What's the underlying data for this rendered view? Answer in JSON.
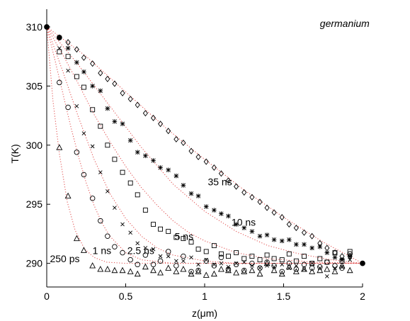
{
  "chart_data": {
    "type": "scatter",
    "title": "",
    "xlabel": "z(μm)",
    "ylabel": "T(K)",
    "xlim": [
      0,
      2
    ],
    "ylim": [
      288,
      311.5
    ],
    "x_ticks": [
      0,
      0.5,
      1,
      1.5,
      2
    ],
    "x_tick_labels": [
      "0",
      "0.5",
      "1",
      "1.5",
      "2"
    ],
    "y_ticks": [
      290,
      295,
      300,
      305,
      310
    ],
    "y_tick_labels": [
      "290",
      "295",
      "300",
      "305",
      "310"
    ],
    "grid": false,
    "legend": "none",
    "annotations": [
      {
        "text": "germanium",
        "x": 1.73,
        "y": 310.0,
        "italic": true
      },
      {
        "text": "35 ns",
        "x": 1.02,
        "y": 296.6
      },
      {
        "text": "10 ns",
        "x": 1.17,
        "y": 293.2
      },
      {
        "text": "5 ns",
        "x": 0.81,
        "y": 292.0
      },
      {
        "text": "2.5 ns",
        "x": 0.51,
        "y": 290.8
      },
      {
        "text": "1 ns",
        "x": 0.29,
        "y": 290.8
      },
      {
        "text": "250 ps",
        "x": 0.02,
        "y": 290.1
      }
    ],
    "endpoints": [
      {
        "x": 0.0,
        "y": 310.0
      },
      {
        "x": 0.08,
        "y": 309.1
      },
      {
        "x": 2.0,
        "y": 290.0
      }
    ],
    "series": [
      {
        "label": "250 ps",
        "marker": "triangle",
        "x": [
          0.08,
          0.135,
          0.19,
          0.235,
          0.29,
          0.34,
          0.385,
          0.43,
          0.48,
          0.53,
          0.575,
          0.625,
          0.675,
          0.72,
          0.77,
          0.82,
          0.865,
          0.915,
          0.96,
          1.01,
          1.06,
          1.105,
          1.15,
          1.2,
          1.25,
          1.3,
          1.35,
          1.395,
          1.44,
          1.49,
          1.535,
          1.58,
          1.63,
          1.68,
          1.73,
          1.775,
          1.825,
          1.87,
          1.92
        ],
        "y": [
          299.8,
          295.7,
          292.1,
          291.1,
          289.8,
          289.5,
          289.5,
          289.4,
          289.4,
          289.3,
          289.1,
          289.7,
          289.4,
          289.2,
          289.6,
          289.3,
          289.5,
          289.1,
          289.3,
          289.0,
          289.1,
          289.5,
          289.4,
          289.2,
          289.3,
          289.4,
          289.1,
          290.0,
          289.4,
          289.1,
          289.7,
          289.3,
          289.5,
          289.3,
          289.4,
          289.5,
          289.3,
          289.8,
          289.4
        ]
      },
      {
        "label": "1 ns",
        "marker": "circle",
        "x": [
          0.08,
          0.135,
          0.19,
          0.235,
          0.29,
          0.34,
          0.385,
          0.43,
          0.48,
          0.53,
          0.575,
          0.625,
          0.675,
          0.72,
          0.77,
          0.82,
          0.865,
          0.915,
          0.96,
          1.01,
          1.06,
          1.105,
          1.15,
          1.2,
          1.25,
          1.3,
          1.35,
          1.395,
          1.44,
          1.49,
          1.535,
          1.58,
          1.63,
          1.68,
          1.73,
          1.775,
          1.825,
          1.87,
          1.92
        ],
        "y": [
          305.3,
          303.2,
          299.4,
          297.5,
          295.5,
          293.6,
          292.3,
          291.4,
          290.9,
          290.3,
          289.9,
          290.7,
          289.9,
          290.2,
          291.0,
          289.8,
          290.6,
          289.3,
          289.4,
          290.2,
          289.8,
          290.5,
          289.5,
          289.9,
          289.4,
          290.0,
          289.6,
          290.1,
          289.8,
          289.3,
          290.0,
          289.5,
          289.9,
          289.6,
          289.7,
          290.1,
          289.8,
          289.6,
          290.8
        ]
      },
      {
        "label": "2.5 ns",
        "marker": "x",
        "x": [
          0.08,
          0.135,
          0.19,
          0.235,
          0.29,
          0.34,
          0.385,
          0.43,
          0.48,
          0.53,
          0.575,
          0.625,
          0.675,
          0.72,
          0.77,
          0.82,
          0.865,
          0.915,
          0.96,
          1.01,
          1.06,
          1.105,
          1.15,
          1.2,
          1.25,
          1.3,
          1.35,
          1.395,
          1.44,
          1.49,
          1.535,
          1.58,
          1.63,
          1.68,
          1.73,
          1.775,
          1.825,
          1.87,
          1.92
        ],
        "y": [
          308.2,
          306.3,
          303.3,
          301.0,
          299.9,
          297.7,
          296.1,
          294.7,
          293.3,
          292.6,
          291.7,
          291.3,
          291.2,
          290.6,
          290.6,
          290.2,
          290.2,
          290.5,
          289.9,
          290.3,
          289.9,
          290.0,
          289.7,
          290.0,
          290.1,
          289.8,
          289.6,
          289.8,
          289.7,
          289.9,
          289.6,
          289.8,
          289.5,
          290.0,
          289.6,
          288.9,
          289.6,
          289.7,
          290.3
        ]
      },
      {
        "label": "5 ns",
        "marker": "square",
        "x": [
          0.08,
          0.135,
          0.19,
          0.235,
          0.29,
          0.34,
          0.385,
          0.43,
          0.48,
          0.53,
          0.575,
          0.625,
          0.675,
          0.72,
          0.77,
          0.82,
          0.865,
          0.915,
          0.96,
          1.01,
          1.06,
          1.105,
          1.15,
          1.2,
          1.25,
          1.3,
          1.35,
          1.395,
          1.44,
          1.49,
          1.535,
          1.58,
          1.63,
          1.68,
          1.73,
          1.775,
          1.825,
          1.87,
          1.92
        ],
        "y": [
          307.9,
          307.5,
          305.8,
          304.9,
          303.0,
          301.6,
          300.0,
          298.8,
          297.7,
          296.8,
          295.8,
          294.5,
          293.3,
          292.9,
          292.7,
          292.2,
          292.1,
          291.8,
          291.2,
          291.0,
          291.5,
          290.8,
          290.6,
          290.9,
          290.4,
          290.6,
          290.3,
          290.7,
          290.4,
          290.3,
          290.8,
          290.2,
          290.6,
          290.0,
          290.4,
          290.1,
          290.9,
          290.2,
          291.0
        ]
      },
      {
        "label": "10 ns",
        "marker": "star",
        "x": [
          0.08,
          0.135,
          0.19,
          0.235,
          0.29,
          0.34,
          0.385,
          0.43,
          0.48,
          0.53,
          0.575,
          0.625,
          0.675,
          0.72,
          0.77,
          0.82,
          0.865,
          0.915,
          0.96,
          1.01,
          1.06,
          1.105,
          1.15,
          1.2,
          1.25,
          1.3,
          1.35,
          1.395,
          1.44,
          1.49,
          1.535,
          1.58,
          1.63,
          1.68,
          1.73,
          1.775,
          1.825,
          1.87,
          1.92
        ],
        "y": [
          309.1,
          308.2,
          307.0,
          306.2,
          305.0,
          304.6,
          303.1,
          302.0,
          301.8,
          300.4,
          299.4,
          299.1,
          298.7,
          298.1,
          297.9,
          297.4,
          296.6,
          295.9,
          295.7,
          294.8,
          294.5,
          294.2,
          294.0,
          293.3,
          293.0,
          292.7,
          292.3,
          292.4,
          292.0,
          291.9,
          292.0,
          291.6,
          291.6,
          291.3,
          291.4,
          290.9,
          290.5,
          290.3,
          290.6
        ]
      },
      {
        "label": "35 ns",
        "marker": "diamond",
        "x": [
          0.08,
          0.135,
          0.19,
          0.235,
          0.29,
          0.34,
          0.385,
          0.43,
          0.48,
          0.53,
          0.575,
          0.625,
          0.675,
          0.72,
          0.77,
          0.82,
          0.865,
          0.915,
          0.96,
          1.01,
          1.06,
          1.105,
          1.15,
          1.2,
          1.25,
          1.3,
          1.35,
          1.395,
          1.44,
          1.49,
          1.535,
          1.58,
          1.63,
          1.68,
          1.73,
          1.775,
          1.825,
          1.87,
          1.92
        ],
        "y": [
          309.1,
          308.7,
          308.1,
          307.4,
          306.9,
          306.1,
          305.6,
          305.2,
          304.4,
          303.9,
          303.4,
          302.7,
          302.3,
          301.8,
          301.2,
          300.5,
          300.2,
          299.5,
          299.0,
          298.6,
          298.1,
          297.6,
          297.0,
          296.5,
          296.0,
          295.6,
          295.2,
          294.7,
          294.3,
          293.9,
          293.3,
          293.0,
          292.6,
          292.3,
          291.7,
          291.3,
          290.9,
          290.6,
          290.6
        ]
      }
    ],
    "fit_curves": [
      {
        "label": "250 ps",
        "x": [
          0.0,
          0.04,
          0.08,
          0.13,
          0.18,
          0.24,
          0.3,
          0.38,
          0.5,
          0.7,
          1.0,
          1.5,
          2.0
        ],
        "y": [
          310.0,
          303.7,
          299.3,
          295.2,
          292.8,
          291.2,
          290.5,
          290.1,
          290.0,
          290.0,
          290.0,
          290.0,
          290.0
        ]
      },
      {
        "label": "1 ns",
        "x": [
          0.0,
          0.05,
          0.1,
          0.15,
          0.2,
          0.25,
          0.3,
          0.35,
          0.4,
          0.5,
          0.6,
          0.8,
          1.0,
          1.5,
          2.0
        ],
        "y": [
          310.0,
          307.3,
          304.5,
          301.7,
          299.1,
          296.8,
          294.9,
          293.4,
          292.3,
          290.9,
          290.3,
          290.0,
          290.0,
          290.0,
          290.0
        ]
      },
      {
        "label": "2.5 ns",
        "x": [
          0.0,
          0.1,
          0.2,
          0.3,
          0.4,
          0.5,
          0.6,
          0.7,
          0.8,
          1.0,
          1.2,
          1.5,
          2.0
        ],
        "y": [
          310.0,
          306.3,
          302.4,
          298.8,
          295.9,
          293.8,
          292.3,
          291.3,
          290.7,
          290.2,
          290.0,
          290.0,
          290.0
        ]
      },
      {
        "label": "5 ns",
        "x": [
          0.0,
          0.1,
          0.2,
          0.3,
          0.4,
          0.5,
          0.6,
          0.7,
          0.8,
          0.9,
          1.0,
          1.2,
          1.4,
          1.7,
          2.0
        ],
        "y": [
          310.0,
          307.7,
          305.2,
          302.6,
          300.3,
          298.2,
          296.4,
          294.9,
          293.6,
          292.6,
          291.9,
          290.9,
          290.4,
          290.1,
          290.0
        ]
      },
      {
        "label": "10 ns",
        "x": [
          0.0,
          0.2,
          0.4,
          0.6,
          0.8,
          1.0,
          1.2,
          1.4,
          1.6,
          1.8,
          2.0
        ],
        "y": [
          310.0,
          306.8,
          303.3,
          299.8,
          296.7,
          294.4,
          292.7,
          291.5,
          290.8,
          290.3,
          290.0
        ]
      },
      {
        "label": "35 ns",
        "x": [
          0.0,
          0.25,
          0.5,
          0.75,
          1.0,
          1.25,
          1.5,
          1.75,
          2.0
        ],
        "y": [
          310.0,
          307.5,
          304.5,
          301.5,
          298.8,
          296.2,
          293.9,
          291.8,
          290.0
        ]
      }
    ]
  }
}
